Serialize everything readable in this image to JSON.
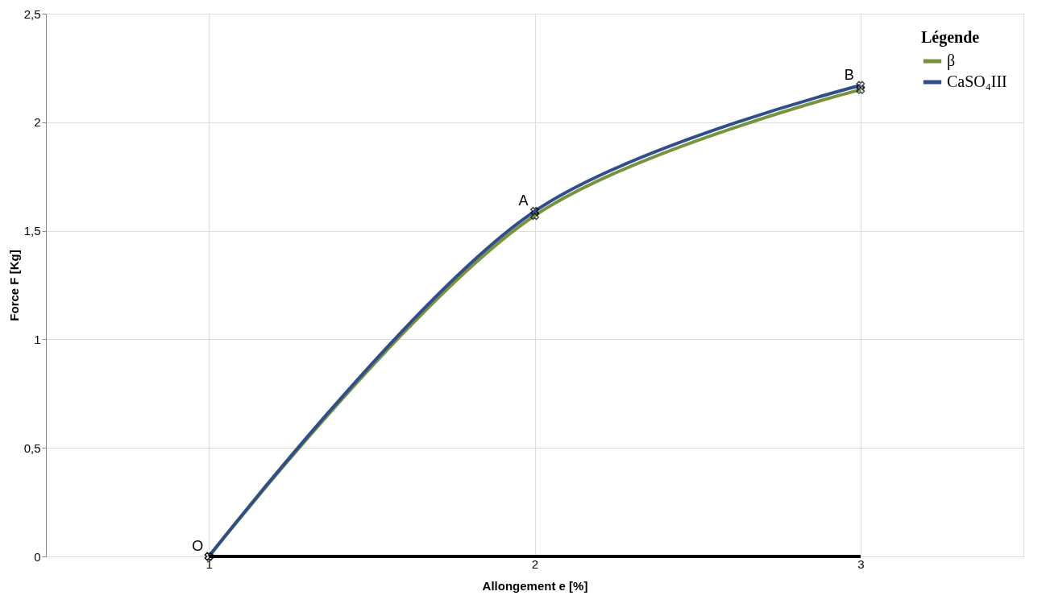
{
  "chart_data": {
    "type": "line",
    "xlabel": "Allongement e [%]",
    "ylabel": "Force F [Kg]",
    "legend_title": "Légende",
    "categories": [
      "1",
      "2",
      "3"
    ],
    "series": [
      {
        "name": "β",
        "color": "#77933c",
        "values": [
          0,
          1.57,
          2.15
        ]
      },
      {
        "name": "CaSO₄III",
        "color": "#2f4f8a",
        "values": [
          0,
          1.59,
          2.17
        ]
      },
      {
        "color": "#000000",
        "values": [
          0,
          0,
          0
        ],
        "marker": "none"
      }
    ],
    "ylim": [
      0,
      2.5
    ],
    "yticks": [
      0,
      {
        "value": 0.5,
        "label": "0,5"
      },
      1,
      {
        "value": 1.5,
        "label": "1,5"
      },
      2,
      {
        "value": 2.5,
        "label": "2,5"
      }
    ],
    "grid": true,
    "legend": "top right",
    "marker": "cross",
    "line_style": "solid",
    "annotations": [
      {
        "text": "O",
        "x": "1",
        "y": 0
      },
      {
        "text": "A",
        "x": "2",
        "y": 1.59
      },
      {
        "text": "B",
        "x": "3",
        "y": 2.17
      }
    ]
  }
}
